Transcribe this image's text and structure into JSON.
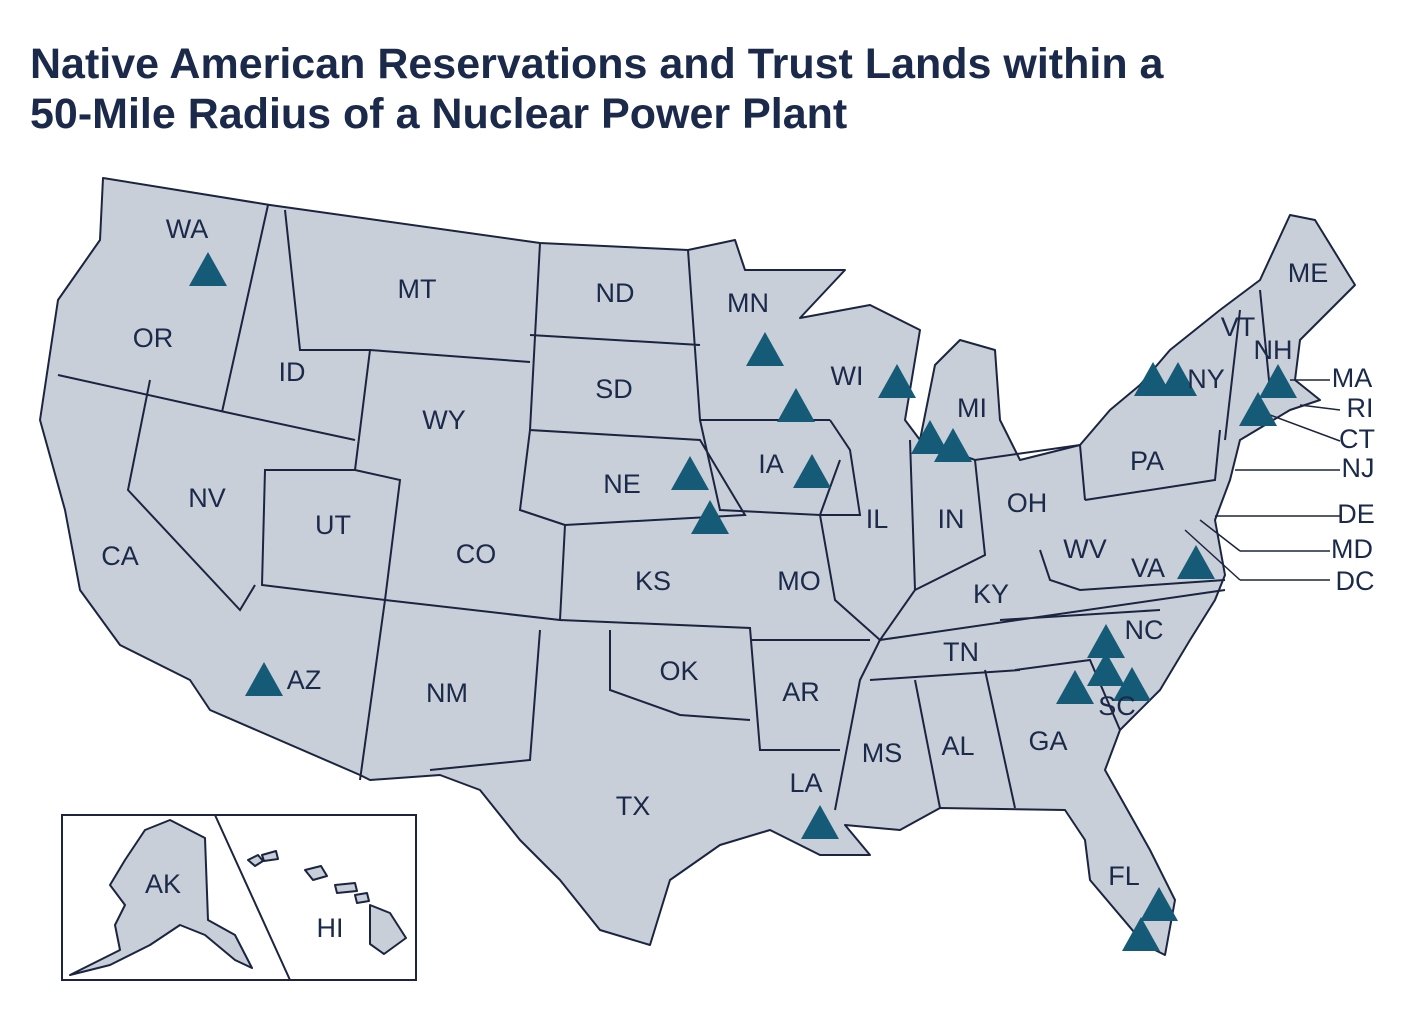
{
  "title_lines": [
    "Native American Reservations and Trust Lands within a",
    "50-Mile Radius of a Nuclear Power Plant"
  ],
  "states": [
    "WA",
    "OR",
    "CA",
    "NV",
    "ID",
    "MT",
    "WY",
    "UT",
    "CO",
    "AZ",
    "NM",
    "ND",
    "SD",
    "NE",
    "KS",
    "OK",
    "TX",
    "MN",
    "IA",
    "MO",
    "AR",
    "LA",
    "WI",
    "IL",
    "MS",
    "MI",
    "IN",
    "KY",
    "TN",
    "AL",
    "OH",
    "GA",
    "FL",
    "WV",
    "VA",
    "NC",
    "SC",
    "PA",
    "NY",
    "VT",
    "NH",
    "ME",
    "MA",
    "RI",
    "CT",
    "NJ",
    "DE",
    "MD",
    "DC",
    "AK",
    "HI"
  ]
}
